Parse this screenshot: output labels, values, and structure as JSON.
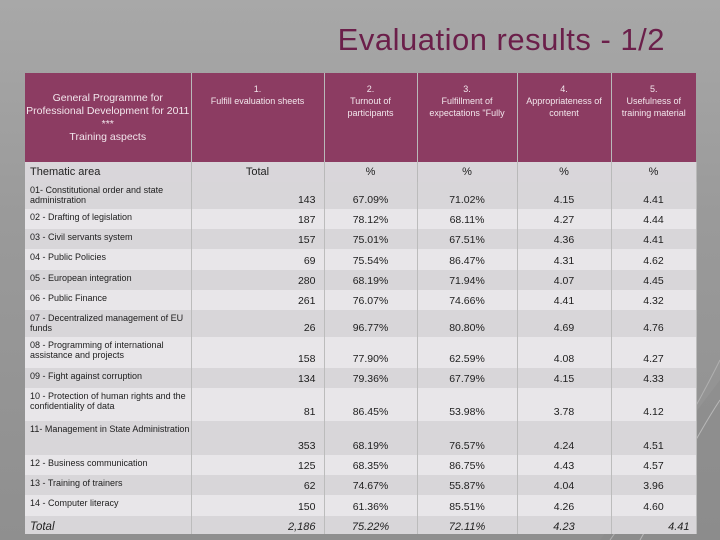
{
  "title": "Evaluation results - 1/2",
  "header": {
    "col0": [
      "General Programme for",
      "Professional Development for 2011",
      "***",
      "Training aspects"
    ],
    "cols": [
      {
        "num": "1.",
        "label": "Fulfill evaluation sheets"
      },
      {
        "num": "2.",
        "label": "Turnout of participants"
      },
      {
        "num": "3.",
        "label": "Fulfillment of expectations \"Fully"
      },
      {
        "num": "4.",
        "label": "Appropriateness of content"
      },
      {
        "num": "5.",
        "label": "Usefulness of training material"
      }
    ]
  },
  "subheader": {
    "col0": "Thematic area",
    "cols": [
      "Total",
      "%",
      "%",
      "%",
      "%"
    ]
  },
  "rows": [
    {
      "area": "01- Constitutional order and state administration",
      "total": "143",
      "turnout": "67.09%",
      "expect": "71.02%",
      "approp": "4.15",
      "useful": "4.41"
    },
    {
      "area": "02 - Drafting of legislation",
      "total": "187",
      "turnout": "78.12%",
      "expect": "68.11%",
      "approp": "4.27",
      "useful": "4.44"
    },
    {
      "area": "03 - Civil servants system",
      "total": "157",
      "turnout": "75.01%",
      "expect": "67.51%",
      "approp": "4.36",
      "useful": "4.41"
    },
    {
      "area": "04 - Public Policies",
      "total": "69",
      "turnout": "75.54%",
      "expect": "86.47%",
      "approp": "4.31",
      "useful": "4.62"
    },
    {
      "area": "05 - European integration",
      "total": "280",
      "turnout": "68.19%",
      "expect": "71.94%",
      "approp": "4.07",
      "useful": "4.45"
    },
    {
      "area": "06 -  Public Finance",
      "total": "261",
      "turnout": "76.07%",
      "expect": "74.66%",
      "approp": "4.41",
      "useful": "4.32"
    },
    {
      "area": "07 -  Decentralized management of EU funds",
      "total": "26",
      "turnout": "96.77%",
      "expect": "80.80%",
      "approp": "4.69",
      "useful": "4.76"
    },
    {
      "area": "08 - Programming of international assistance and projects",
      "total": "158",
      "turnout": "77.90%",
      "expect": "62.59%",
      "approp": "4.08",
      "useful": "4.27"
    },
    {
      "area": "09 - Fight against corruption",
      "total": "134",
      "turnout": "79.36%",
      "expect": "67.79%",
      "approp": "4.15",
      "useful": "4.33"
    },
    {
      "area": "10 - Protection of human rights and the confidentiality of data",
      "total": "81",
      "turnout": "86.45%",
      "expect": "53.98%",
      "approp": "3.78",
      "useful": "4.12"
    },
    {
      "area": "11- Management in State Administration",
      "total": "353",
      "turnout": "68.19%",
      "expect": "76.57%",
      "approp": "4.24",
      "useful": "4.51"
    },
    {
      "area": "12 - Business communication",
      "total": "125",
      "turnout": "68.35%",
      "expect": "86.75%",
      "approp": "4.43",
      "useful": "4.57"
    },
    {
      "area": "13 - Training of trainers",
      "total": "62",
      "turnout": "74.67%",
      "expect": "55.87%",
      "approp": "4.04",
      "useful": "3.96"
    },
    {
      "area": "14 - Computer literacy",
      "total": "150",
      "turnout": "61.36%",
      "expect": "85.51%",
      "approp": "4.26",
      "useful": "4.60"
    }
  ],
  "total_row": {
    "area": "Total",
    "total": "2,186",
    "turnout": "75.22%",
    "expect": "72.11%",
    "approp": "4.23",
    "useful": "4.41"
  },
  "colors": {
    "accent": "#8c3c62",
    "title": "#6b1f4a"
  }
}
